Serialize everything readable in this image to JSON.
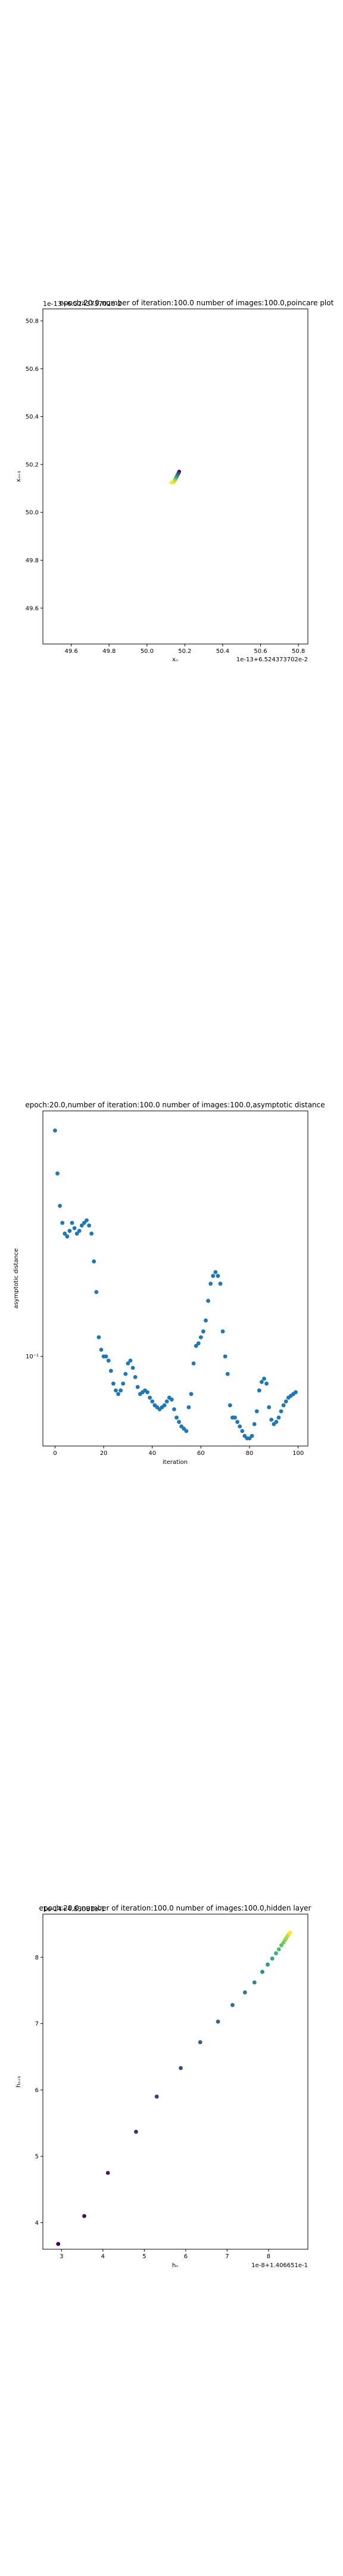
{
  "chart_data": [
    {
      "type": "scatter",
      "title": "epoch:20.0,number of iteration:100.0 number of images:100.0,poincare plot",
      "overlay_text": "1e-13+6.524373702e-2",
      "xlabel": "xₙ",
      "ylabel": "xₙ₊₁",
      "x_offset_label": "1e-13+6.524373702e-2",
      "xlim": [
        49.45,
        50.85
      ],
      "ylim": [
        49.45,
        50.85
      ],
      "xticks": [
        "49.6",
        "49.8",
        "50.0",
        "50.2",
        "50.4",
        "50.6",
        "50.8"
      ],
      "yticks": [
        "49.6",
        "49.8",
        "50.0",
        "50.2",
        "50.4",
        "50.6",
        "50.8"
      ],
      "colormap": [
        "#440154",
        "#3b528b",
        "#21918c",
        "#5ec962",
        "#fde725"
      ],
      "points": [
        [
          50.17,
          50.17
        ],
        [
          50.168,
          50.166
        ],
        [
          50.166,
          50.163
        ],
        [
          50.164,
          50.16
        ],
        [
          50.162,
          50.157
        ],
        [
          50.16,
          50.154
        ],
        [
          50.158,
          50.151
        ],
        [
          50.156,
          50.148
        ],
        [
          50.154,
          50.145
        ],
        [
          50.152,
          50.142
        ],
        [
          50.15,
          50.139
        ],
        [
          50.148,
          50.136
        ],
        [
          50.146,
          50.133
        ],
        [
          50.144,
          50.13
        ],
        [
          50.142,
          50.127
        ],
        [
          50.13,
          50.125
        ]
      ]
    },
    {
      "type": "scatter",
      "title": "epoch:20.0,number of iteration:100.0  number of images:100.0,asymptotic distance",
      "xlabel": "iteration",
      "ylabel": "asymptotic distance",
      "xlim": [
        -5,
        104
      ],
      "log_y": true,
      "ylim": [
        0.052,
        0.6
      ],
      "xticks": [
        "0",
        "20",
        "40",
        "60",
        "80",
        "100"
      ],
      "yticks": [
        "10⁻¹"
      ],
      "color": "#1f77b4",
      "x": [
        0,
        1,
        2,
        3,
        4,
        5,
        6,
        7,
        8,
        9,
        10,
        11,
        12,
        13,
        14,
        15,
        16,
        17,
        18,
        19,
        20,
        21,
        22,
        23,
        24,
        25,
        26,
        27,
        28,
        29,
        30,
        31,
        32,
        33,
        34,
        35,
        36,
        37,
        38,
        39,
        40,
        41,
        42,
        43,
        44,
        45,
        46,
        47,
        48,
        49,
        50,
        51,
        52,
        53,
        54,
        55,
        56,
        57,
        58,
        59,
        60,
        61,
        62,
        63,
        64,
        65,
        66,
        67,
        68,
        69,
        70,
        71,
        72,
        73,
        74,
        75,
        76,
        77,
        78,
        79,
        80,
        81,
        82,
        83,
        84,
        85,
        86,
        87,
        88,
        89,
        90,
        91,
        92,
        93,
        94,
        95,
        96,
        97,
        98,
        99
      ],
      "y": [
        0.52,
        0.38,
        0.3,
        0.265,
        0.245,
        0.24,
        0.25,
        0.265,
        0.255,
        0.245,
        0.25,
        0.26,
        0.265,
        0.27,
        0.26,
        0.245,
        0.2,
        0.16,
        0.115,
        0.105,
        0.1,
        0.1,
        0.097,
        0.09,
        0.082,
        0.078,
        0.076,
        0.078,
        0.082,
        0.088,
        0.095,
        0.097,
        0.092,
        0.086,
        0.08,
        0.076,
        0.077,
        0.078,
        0.077,
        0.074,
        0.072,
        0.07,
        0.069,
        0.068,
        0.069,
        0.07,
        0.072,
        0.074,
        0.073,
        0.068,
        0.064,
        0.062,
        0.06,
        0.059,
        0.058,
        0.069,
        0.076,
        0.095,
        0.108,
        0.11,
        0.115,
        0.12,
        0.13,
        0.15,
        0.17,
        0.18,
        0.185,
        0.18,
        0.17,
        0.12,
        0.1,
        0.088,
        0.07,
        0.064,
        0.064,
        0.062,
        0.06,
        0.058,
        0.056,
        0.055,
        0.055,
        0.056,
        0.061,
        0.067,
        0.078,
        0.083,
        0.085,
        0.082,
        0.069,
        0.063,
        0.061,
        0.062,
        0.064,
        0.067,
        0.07,
        0.072,
        0.074,
        0.075,
        0.076,
        0.077
      ]
    },
    {
      "type": "scatter",
      "title": "epoch:20.0,number of iteration:100.0  number of images:100.0,hidden layer",
      "overlay_text": "1e-14+4.83081e-1",
      "xlabel": "hₙ",
      "ylabel": "hₙ₊₁",
      "x_offset_label": "1e-8+1.406651e-1",
      "xlim": [
        2.55,
        8.95
      ],
      "ylim": [
        3.6,
        8.65
      ],
      "xticks": [
        "3",
        "4",
        "5",
        "6",
        "7",
        "8"
      ],
      "yticks": [
        "4",
        "5",
        "6",
        "7",
        "8"
      ],
      "colormap": [
        "#440154",
        "#3b528b",
        "#21918c",
        "#5ec962",
        "#fde725"
      ],
      "points": [
        [
          2.92,
          3.68
        ],
        [
          3.55,
          4.1
        ],
        [
          4.12,
          4.75
        ],
        [
          4.8,
          5.37
        ],
        [
          5.3,
          5.9
        ],
        [
          5.88,
          6.33
        ],
        [
          6.35,
          6.72
        ],
        [
          6.78,
          7.03
        ],
        [
          7.13,
          7.28
        ],
        [
          7.43,
          7.47
        ],
        [
          7.66,
          7.62
        ],
        [
          7.85,
          7.78
        ],
        [
          7.98,
          7.89
        ],
        [
          8.09,
          7.98
        ],
        [
          8.18,
          8.06
        ],
        [
          8.25,
          8.12
        ],
        [
          8.31,
          8.18
        ],
        [
          8.36,
          8.22
        ],
        [
          8.4,
          8.26
        ],
        [
          8.43,
          8.29
        ],
        [
          8.46,
          8.32
        ],
        [
          8.49,
          8.35
        ],
        [
          8.52,
          8.37
        ]
      ]
    }
  ]
}
